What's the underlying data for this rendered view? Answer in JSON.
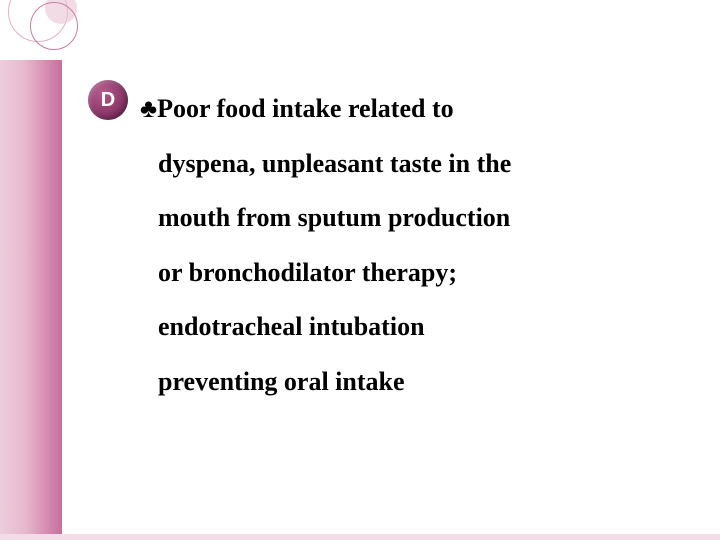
{
  "badge": {
    "letter": "D"
  },
  "club_symbol": "♣",
  "lines": {
    "l1": "Poor food intake related to",
    "l2": "dyspena, unpleasant taste in the",
    "l3": "mouth from sputum production",
    "l4": "or bronchodilator therapy;",
    "l5": "endotracheal intubation",
    "l6": " preventing  oral intake"
  },
  "colors": {
    "accent": "#8e3a6c",
    "sidebar_start": "#eecddc",
    "sidebar_end": "#c56f9a",
    "text": "#000000",
    "background": "#ffffff"
  }
}
